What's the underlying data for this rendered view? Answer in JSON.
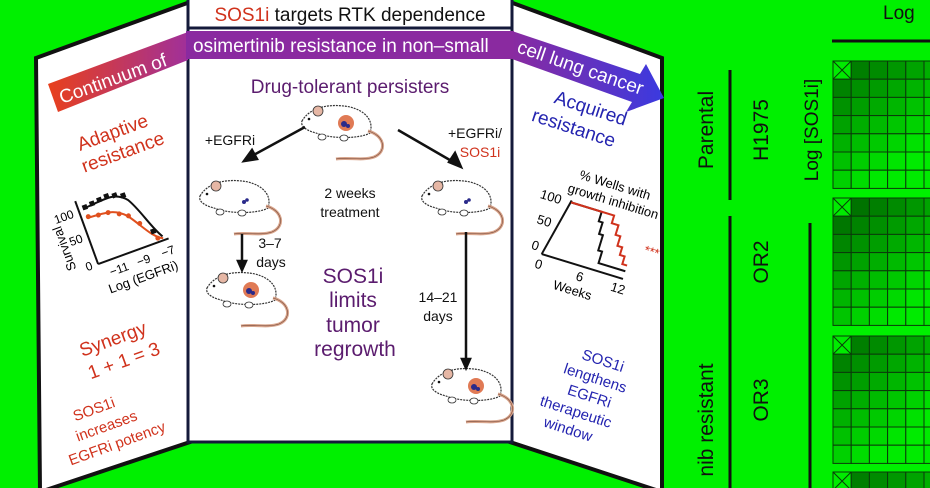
{
  "colors": {
    "background": "#00f000",
    "adaptive_red": "#d0321c",
    "acquired_blue": "#2424b0",
    "persister_purple": "#5b1c6e",
    "banner_start": "#e8401c",
    "banner_mid": "#8a2aa0",
    "banner_end": "#3a3ae0"
  },
  "title": {
    "highlight": "SOS1i",
    "rest": " targets RTK dependence"
  },
  "banner": {
    "left": "Continuum of",
    "middle": "osimertinib resistance in non–small",
    "right": "cell lung cancer"
  },
  "left_panel": {
    "heading": [
      "Adaptive",
      "resistance"
    ],
    "chart": {
      "ylabel": "Survival",
      "xlabel": "Log (EGFRi)",
      "yticks": [
        "0",
        "50",
        "100"
      ],
      "xticks": [
        "−11",
        "−9",
        "−7"
      ]
    },
    "synergy": [
      "Synergy",
      "1 + 1 = 3"
    ],
    "footer": [
      "SOS1i",
      "increases",
      "EGFRi potency"
    ]
  },
  "center_panel": {
    "heading": "Drug-tolerant persisters",
    "left_treatment": "+EGFRi",
    "right_treatment": [
      "+EGFRi/",
      "SOS1i"
    ],
    "duration": [
      "2 weeks",
      "treatment"
    ],
    "left_regrowth": [
      "3–7",
      "days"
    ],
    "right_regrowth": [
      "14–21",
      "days"
    ],
    "message": [
      "SOS1i",
      "limits",
      "tumor",
      "regrowth"
    ]
  },
  "right_panel": {
    "heading": [
      "Acquired",
      "resistance"
    ],
    "chart": {
      "title": [
        "% Wells with",
        "growth inhibition"
      ],
      "xlabel": "Weeks",
      "yticks": [
        "0",
        "50",
        "100"
      ],
      "xticks": [
        "0",
        "6",
        "12"
      ],
      "significance": "***"
    },
    "footer": [
      "SOS1i",
      "lengthens",
      "EGFRi",
      "therapeutic",
      "window"
    ]
  },
  "heatmap_panel": {
    "top_label": "Log",
    "y_axis_label": "Log [SOS1i]",
    "groups": [
      {
        "label": "Parental",
        "lines": [
          "H1975"
        ]
      },
      {
        "label": "nib resistant",
        "lines": [
          "OR2",
          "OR3"
        ]
      }
    ]
  }
}
